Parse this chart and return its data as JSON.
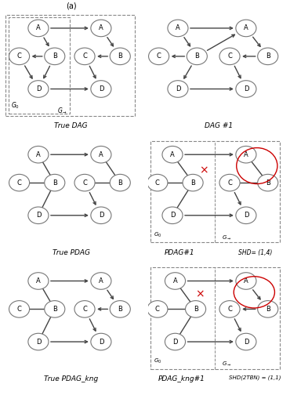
{
  "title_a": "(a)",
  "row1_left_label": "True DAG",
  "row1_right_label": "DAG #1",
  "row2_left_label": "True PDAG",
  "row2_right_label": "PDAG#1",
  "row2_right_shd": "SHD= (1,4)",
  "row3_left_label": "True PDAG_kng",
  "row3_right_label": "PDAG_kng#1",
  "row3_right_shd": "SHD(2TBN) = (1,1)",
  "bg_color": "#ffffff",
  "node_color": "#ffffff",
  "node_edge_color": "#777777",
  "edge_color": "#444444",
  "red_color": "#cc0000",
  "box_color": "#888888"
}
